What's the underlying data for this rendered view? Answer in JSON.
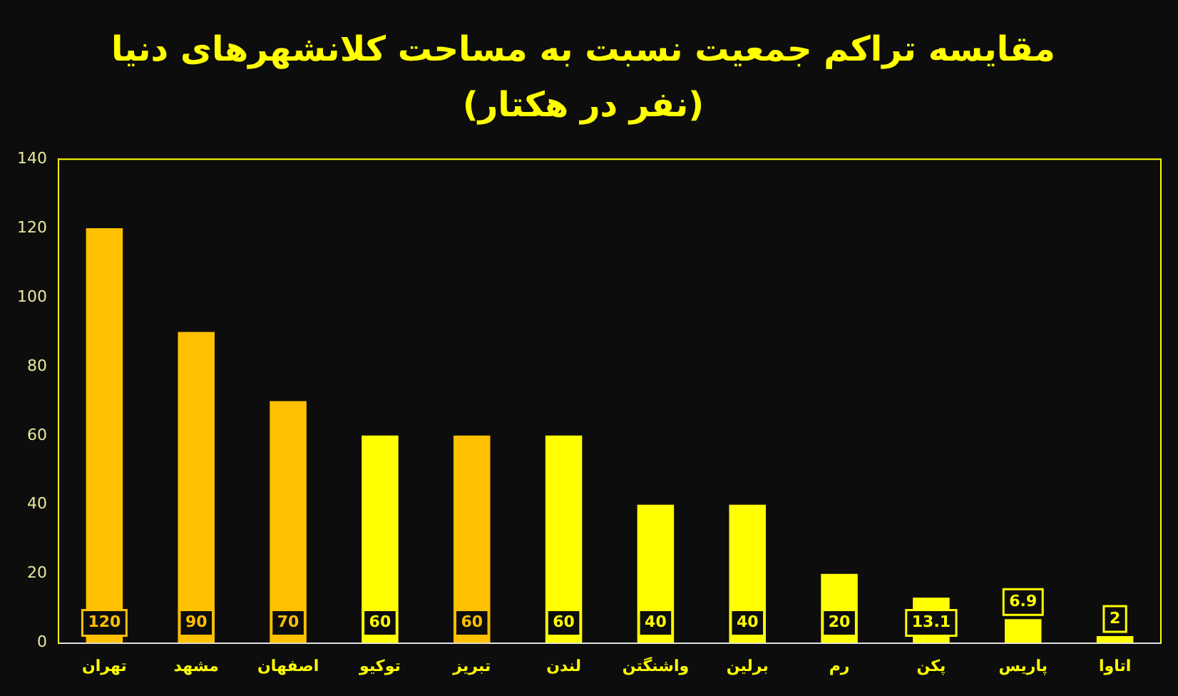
{
  "chart_data": {
    "type": "bar",
    "title": "مقایسه تراکم جمعیت نسبت به مساحت کلانشهرهای دنیا",
    "subtitle": "(نفر در هکتار)",
    "categories": [
      "تهران",
      "مشهد",
      "اصفهان",
      "توکیو",
      "تبریز",
      "لندن",
      "واشنگتن",
      "برلین",
      "رم",
      "پکن",
      "پاریس",
      "اتاوا"
    ],
    "values": [
      120,
      90,
      70,
      60,
      60,
      60,
      40,
      40,
      20,
      13.1,
      6.9,
      2
    ],
    "colors": [
      "#ffc000",
      "#ffc000",
      "#ffc000",
      "#ffff00",
      "#ffc000",
      "#ffff00",
      "#ffff00",
      "#ffff00",
      "#ffff00",
      "#ffff00",
      "#ffff00",
      "#ffff00"
    ],
    "ylim": [
      0,
      140
    ],
    "yticks": [
      0,
      20,
      40,
      60,
      80,
      100,
      120,
      140
    ],
    "grid": false,
    "legend": false,
    "data_labels": true
  }
}
